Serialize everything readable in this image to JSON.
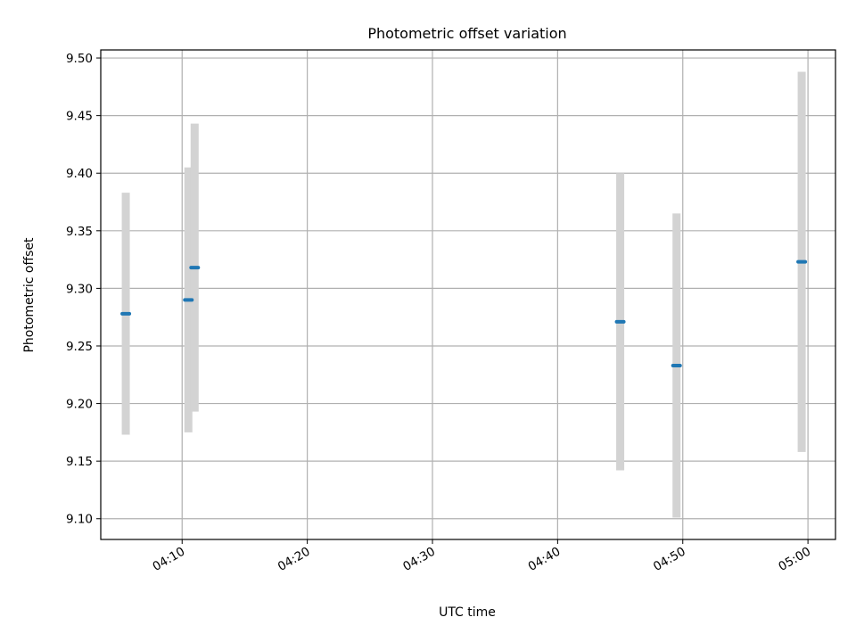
{
  "chart_data": {
    "type": "scatter",
    "title": "Photometric offset variation",
    "xlabel": "UTC time",
    "ylabel": "Photometric offset",
    "x_tick_labels": [
      "04:10",
      "04:20",
      "04:30",
      "04:40",
      "04:50",
      "05:00"
    ],
    "x_tick_minutes": [
      250,
      260,
      270,
      280,
      290,
      300
    ],
    "xlim_minutes": [
      243.5,
      302.2
    ],
    "y_ticks": [
      9.1,
      9.15,
      9.2,
      9.25,
      9.3,
      9.35,
      9.4,
      9.45,
      9.5
    ],
    "y_tick_labels": [
      "9.10",
      "9.15",
      "9.20",
      "9.25",
      "9.30",
      "9.35",
      "9.40",
      "9.45",
      "9.50"
    ],
    "ylim": [
      9.082,
      9.507
    ],
    "grid": true,
    "series": [
      {
        "points": [
          {
            "x": "04:05:30",
            "y": 9.278,
            "err": 0.105
          },
          {
            "x": "04:10:30",
            "y": 9.29,
            "err": 0.115
          },
          {
            "x": "04:11:00",
            "y": 9.318,
            "err": 0.125
          },
          {
            "x": "04:45:00",
            "y": 9.271,
            "err": 0.129
          },
          {
            "x": "04:49:30",
            "y": 9.233,
            "err": 0.132
          },
          {
            "x": "04:59:30",
            "y": 9.323,
            "err": 0.165
          }
        ]
      }
    ],
    "colors": {
      "marker": "#1f77b4",
      "errorbar": "#d3d3d3",
      "grid": "#b0b0b0"
    }
  }
}
